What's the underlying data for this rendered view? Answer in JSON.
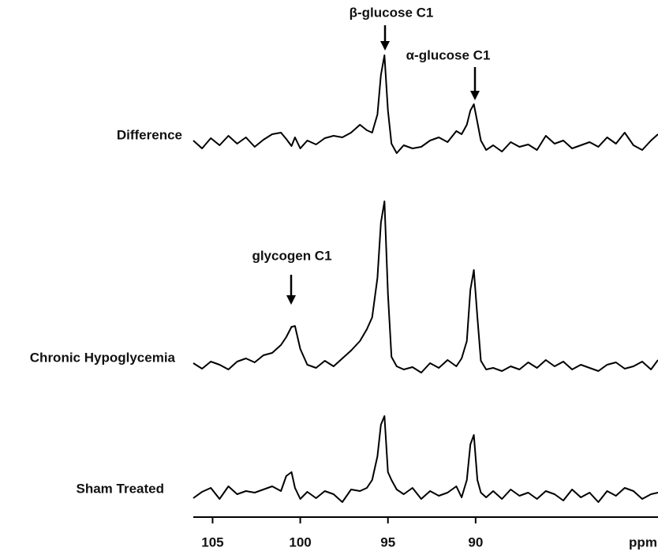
{
  "chart_data": {
    "type": "line",
    "x": [
      106.1,
      105.6,
      105.1,
      104.6,
      104.1,
      103.6,
      103.1,
      102.6,
      102.1,
      101.6,
      101.1,
      100.8,
      100.5,
      100.3,
      100.0,
      99.6,
      99.1,
      98.6,
      98.1,
      97.6,
      97.1,
      96.6,
      96.2,
      95.9,
      95.6,
      95.4,
      95.2,
      95.0,
      94.8,
      94.5,
      94.1,
      93.6,
      93.1,
      92.6,
      92.1,
      91.6,
      91.1,
      90.8,
      90.5,
      90.3,
      90.1,
      89.9,
      89.7,
      89.4,
      89.0,
      88.5,
      88.0,
      87.5,
      87.0,
      86.5,
      86.0,
      85.5,
      85.0,
      84.5,
      84.0,
      83.5,
      83.0,
      82.5,
      82.0,
      81.5,
      81.0,
      80.5,
      80.0,
      79.6
    ],
    "series": [
      {
        "name": "Difference",
        "color": "#000000",
        "values": [
          2,
          -8,
          5,
          -4,
          8,
          -2,
          6,
          -6,
          3,
          10,
          12,
          4,
          -5,
          6,
          -8,
          2,
          -3,
          5,
          8,
          6,
          12,
          22,
          15,
          12,
          35,
          85,
          110,
          40,
          -2,
          -14,
          -4,
          -8,
          -6,
          2,
          6,
          0,
          14,
          10,
          22,
          40,
          48,
          25,
          2,
          -10,
          -4,
          -12,
          0,
          -6,
          -3,
          -10,
          8,
          -2,
          2,
          -8,
          -4,
          0,
          -6,
          6,
          -2,
          12,
          -4,
          -10,
          2,
          10
        ]
      },
      {
        "name": "Chronic Hypoglycemia",
        "color": "#000000",
        "values": [
          2,
          -5,
          4,
          0,
          -6,
          4,
          8,
          3,
          12,
          15,
          25,
          35,
          48,
          49,
          20,
          0,
          -4,
          5,
          -2,
          8,
          18,
          30,
          45,
          60,
          110,
          180,
          207,
          90,
          10,
          -2,
          -6,
          -3,
          -10,
          2,
          -4,
          6,
          -2,
          8,
          30,
          95,
          120,
          60,
          5,
          -6,
          -4,
          -8,
          -2,
          -6,
          3,
          -4,
          6,
          -2,
          4,
          -6,
          0,
          -4,
          -8,
          0,
          3,
          -5,
          -2,
          4,
          -6,
          6
        ]
      },
      {
        "name": "Sham Treated",
        "color": "#000000",
        "values": [
          -3,
          5,
          10,
          -4,
          12,
          2,
          6,
          4,
          8,
          12,
          6,
          25,
          30,
          10,
          -4,
          5,
          -3,
          6,
          2,
          -8,
          8,
          6,
          10,
          20,
          50,
          90,
          101,
          30,
          20,
          8,
          2,
          10,
          -4,
          6,
          0,
          4,
          12,
          -2,
          20,
          65,
          77,
          20,
          4,
          -2,
          6,
          -4,
          8,
          0,
          4,
          -4,
          6,
          2,
          -6,
          8,
          -2,
          4,
          -8,
          6,
          0,
          10,
          6,
          -4,
          2,
          4
        ]
      }
    ],
    "xlim": [
      106.1,
      79.6
    ],
    "xticks": [
      105,
      100,
      95,
      90
    ],
    "xlabel": "ppm",
    "annotations": [
      "β-glucose C1",
      "α-glucose C1",
      "glycogen C1"
    ]
  }
}
